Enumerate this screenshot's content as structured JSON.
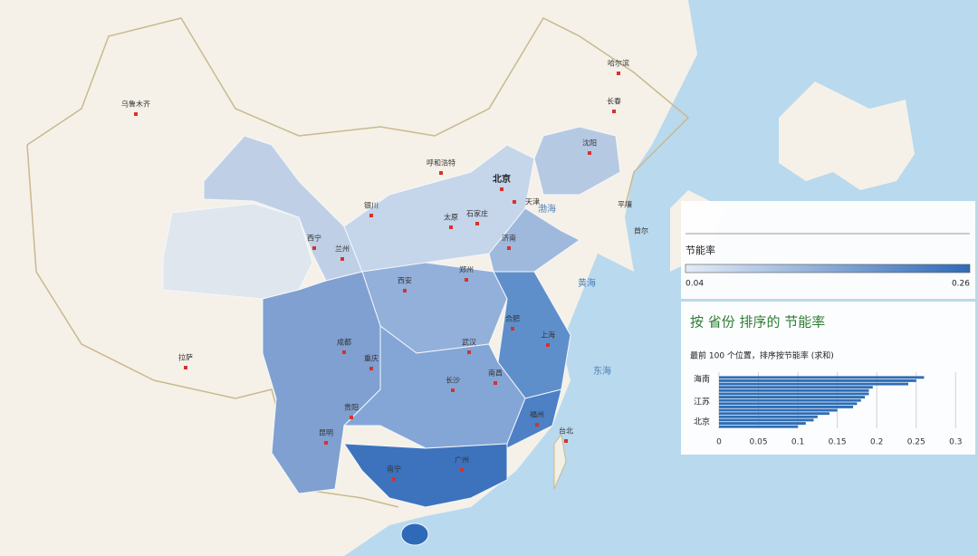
{
  "map": {
    "cities": [
      "乌鲁木齐",
      "哈尔滨",
      "长春",
      "沈阳",
      "北京",
      "天津",
      "呼和浩特",
      "银川",
      "太原",
      "石家庄",
      "济南",
      "西宁",
      "兰州",
      "西安",
      "郑州",
      "合肥",
      "成都",
      "重庆",
      "武汉",
      "长沙",
      "南昌",
      "拉萨",
      "贵阳",
      "昆明",
      "南宁",
      "广州",
      "福州",
      "台北",
      "上海",
      "平壤",
      "首尔"
    ],
    "seas": [
      "渤海",
      "黄海",
      "东海"
    ]
  },
  "legend": {
    "title": "节能率",
    "min": 0.04,
    "max": 0.26
  },
  "chart_data": {
    "type": "bar",
    "orientation": "horizontal",
    "title": "按 省份 排序的 节能率",
    "subtitle": "最前 100 个位置，排序按节能率 (求和)",
    "categories": [
      "海南",
      null,
      null,
      null,
      null,
      null,
      null,
      "江苏",
      null,
      null,
      null,
      null,
      null,
      "北京",
      null,
      null
    ],
    "values": [
      0.26,
      0.25,
      0.24,
      0.195,
      0.19,
      0.19,
      0.185,
      0.18,
      0.175,
      0.17,
      0.15,
      0.14,
      0.125,
      0.12,
      0.11,
      0.1
    ],
    "color": "#2f6eb5",
    "xlim": [
      0,
      0.31
    ],
    "xticks": [
      0,
      0.05,
      0.1,
      0.15,
      0.2,
      0.25,
      0.3
    ],
    "grid": true
  }
}
